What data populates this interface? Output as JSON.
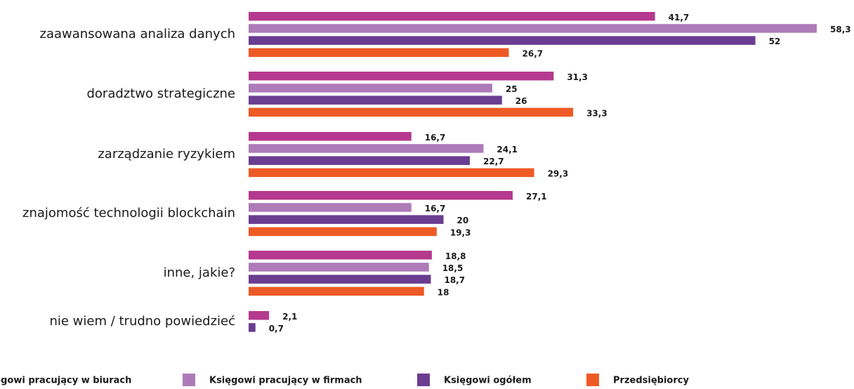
{
  "chart_data": {
    "type": "bar",
    "orientation": "horizontal",
    "categories": [
      "zaawansowana analiza danych",
      "doradztwo strategiczne",
      "zarządzanie ryzykiem",
      "znajomość technologii blockchain",
      "inne, jakie?",
      "nie wiem / trudno powiedzieć"
    ],
    "series": [
      {
        "name": "Księgowi pracujący w biurach",
        "color": "#b5398e",
        "values": [
          41.7,
          31.3,
          16.7,
          27.1,
          18.8,
          2.1
        ],
        "value_labels": [
          "41,7",
          "31,3",
          "16,7",
          "27,1",
          "18,8",
          "2,1"
        ]
      },
      {
        "name": "Księgowi pracujący w firmach",
        "color": "#ad7bb8",
        "values": [
          58.3,
          25,
          24.1,
          16.7,
          18.5,
          null
        ],
        "value_labels": [
          "58,3",
          "25",
          "24,1",
          "16,7",
          "18,5",
          null
        ]
      },
      {
        "name": "Księgowi ogółem",
        "color": "#6b3d91",
        "values": [
          52,
          26,
          22.7,
          20,
          18.7,
          0.7
        ],
        "value_labels": [
          "52",
          "26",
          "22,7",
          "20",
          "18,7",
          "0,7"
        ]
      },
      {
        "name": "Przedsiębiorcy",
        "color": "#ee5a26",
        "values": [
          26.7,
          33.3,
          29.3,
          19.3,
          18,
          null
        ],
        "value_labels": [
          "26,7",
          "33,3",
          "29,3",
          "19,3",
          "18",
          null
        ]
      }
    ],
    "xlim": [
      0,
      58.3
    ],
    "legend": "bottom"
  }
}
